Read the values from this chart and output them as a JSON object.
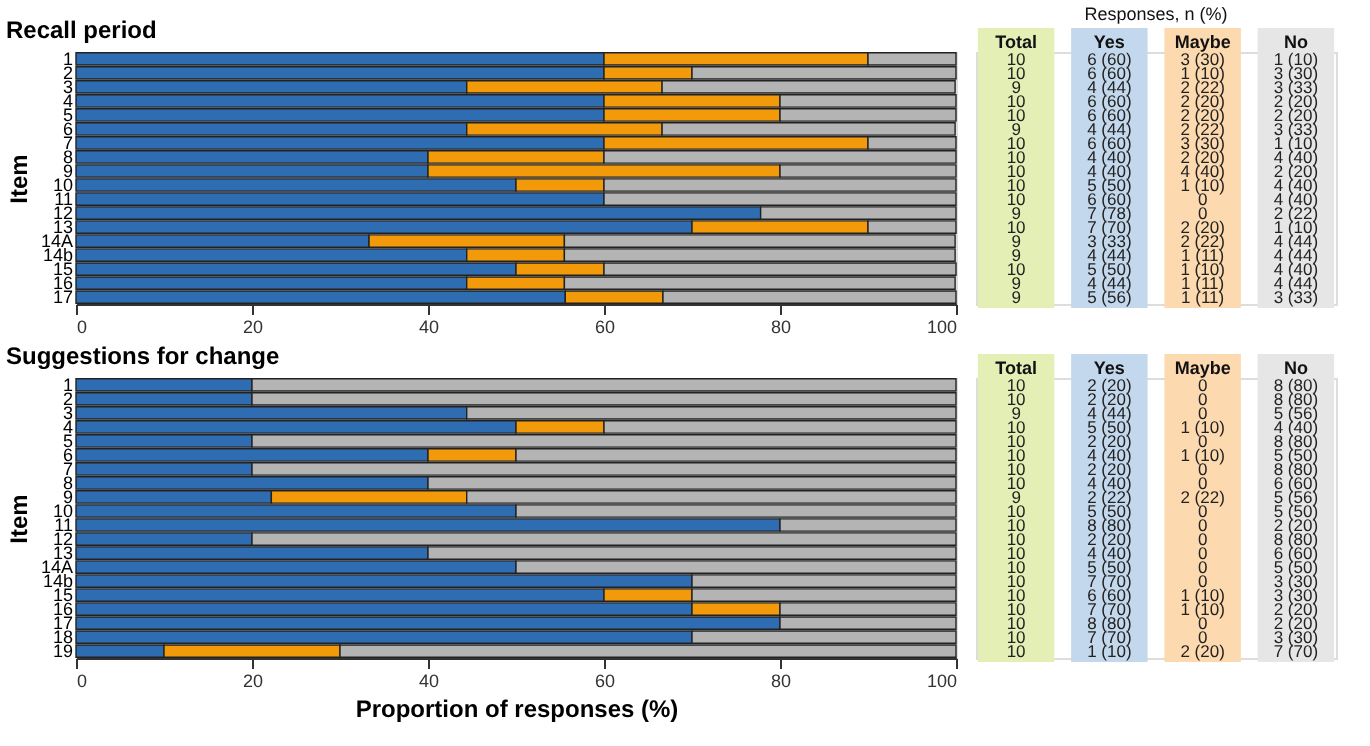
{
  "chart_data": [
    {
      "type": "bar",
      "orientation": "horizontal",
      "stacked": true,
      "title": "Recall period",
      "ylabel": "Item",
      "grid": false,
      "xlim": [
        0,
        100
      ],
      "xticks": [
        0,
        20,
        40,
        60,
        80,
        100
      ],
      "categories": [
        "1",
        "2",
        "3",
        "4",
        "5",
        "6",
        "7",
        "8",
        "9",
        "10",
        "11",
        "12",
        "13",
        "14A",
        "14b",
        "15",
        "16",
        "17"
      ],
      "series": [
        {
          "color": "#2f6db3",
          "values": [
            60,
            60,
            44.4,
            60,
            60,
            44.4,
            60,
            40,
            40,
            50,
            60,
            77.8,
            70,
            33.3,
            44.4,
            50,
            44.4,
            55.6
          ]
        },
        {
          "color": "#f39a0b",
          "values": [
            30,
            10,
            22.2,
            20,
            20,
            22.2,
            30,
            20,
            40,
            10,
            0,
            0,
            20,
            22.2,
            11.1,
            10,
            11.1,
            11.1
          ]
        },
        {
          "color": "#b4b4b4",
          "values": [
            10,
            30,
            33.3,
            20,
            20,
            33.3,
            10,
            40,
            20,
            40,
            40,
            22.2,
            10,
            44.4,
            44.4,
            40,
            44.4,
            33.3
          ]
        }
      ]
    },
    {
      "type": "other",
      "title": "Responses, n (%)",
      "categories": [
        "Total",
        "Yes",
        "Maybe",
        "No"
      ],
      "colors": [
        "#e3efb5",
        "#c3d8ec",
        "#fcd9ae",
        "#e6e6e6"
      ],
      "cell_labels": [
        [
          "10",
          "6 (60)",
          "3 (30)",
          "1 (10)"
        ],
        [
          "10",
          "6 (60)",
          "1 (10)",
          "3 (30)"
        ],
        [
          "9",
          "4 (44)",
          "2 (22)",
          "3 (33)"
        ],
        [
          "10",
          "6 (60)",
          "2 (20)",
          "2 (20)"
        ],
        [
          "10",
          "6 (60)",
          "2 (20)",
          "2 (20)"
        ],
        [
          "9",
          "4 (44)",
          "2 (22)",
          "3 (33)"
        ],
        [
          "10",
          "6 (60)",
          "3 (30)",
          "1 (10)"
        ],
        [
          "10",
          "4 (40)",
          "2 (20)",
          "4 (40)"
        ],
        [
          "10",
          "4 (40)",
          "4 (40)",
          "2 (20)"
        ],
        [
          "10",
          "5 (50)",
          "1 (10)",
          "4 (40)"
        ],
        [
          "10",
          "6 (60)",
          "0",
          "4 (40)"
        ],
        [
          "9",
          "7 (78)",
          "0",
          "2 (22)"
        ],
        [
          "10",
          "7 (70)",
          "2 (20)",
          "1 (10)"
        ],
        [
          "9",
          "3 (33)",
          "2 (22)",
          "4 (44)"
        ],
        [
          "9",
          "4 (44)",
          "1 (11)",
          "4 (44)"
        ],
        [
          "10",
          "5 (50)",
          "1 (10)",
          "4 (40)"
        ],
        [
          "9",
          "4 (44)",
          "1 (11)",
          "4 (44)"
        ],
        [
          "9",
          "5 (56)",
          "1 (11)",
          "3 (33)"
        ]
      ]
    },
    {
      "type": "bar",
      "orientation": "horizontal",
      "stacked": true,
      "title": "Suggestions for change",
      "ylabel": "Item",
      "xlabel": "Proportion of responses (%)",
      "grid": false,
      "xlim": [
        0,
        100
      ],
      "xticks": [
        0,
        20,
        40,
        60,
        80,
        100
      ],
      "categories": [
        "1",
        "2",
        "3",
        "4",
        "5",
        "6",
        "7",
        "8",
        "9",
        "10",
        "11",
        "12",
        "13",
        "14A",
        "14b",
        "15",
        "16",
        "17",
        "18",
        "19"
      ],
      "series": [
        {
          "color": "#2f6db3",
          "values": [
            20,
            20,
            44.4,
            50,
            20,
            40,
            20,
            40,
            22.2,
            50,
            80,
            20,
            40,
            50,
            70,
            60,
            70,
            80,
            70,
            10
          ]
        },
        {
          "color": "#f39a0b",
          "values": [
            0,
            0,
            0,
            10,
            0,
            10,
            0,
            0,
            22.2,
            0,
            0,
            0,
            0,
            0,
            0,
            10,
            10,
            0,
            0,
            20
          ]
        },
        {
          "color": "#b4b4b4",
          "values": [
            80,
            80,
            55.6,
            40,
            80,
            50,
            80,
            60,
            55.6,
            50,
            20,
            80,
            60,
            50,
            30,
            30,
            20,
            20,
            30,
            70
          ]
        }
      ]
    },
    {
      "type": "other",
      "categories": [
        "Total",
        "Yes",
        "Maybe",
        "No"
      ],
      "colors": [
        "#e3efb5",
        "#c3d8ec",
        "#fcd9ae",
        "#e6e6e6"
      ],
      "cell_labels": [
        [
          "10",
          "2 (20)",
          "0",
          "8 (80)"
        ],
        [
          "10",
          "2 (20)",
          "0",
          "8 (80)"
        ],
        [
          "9",
          "4 (44)",
          "0",
          "5 (56)"
        ],
        [
          "10",
          "5 (50)",
          "1 (10)",
          "4 (40)"
        ],
        [
          "10",
          "2 (20)",
          "0",
          "8 (80)"
        ],
        [
          "10",
          "4 (40)",
          "1 (10)",
          "5 (50)"
        ],
        [
          "10",
          "2 (20)",
          "0",
          "8 (80)"
        ],
        [
          "10",
          "4 (40)",
          "0",
          "6 (60)"
        ],
        [
          "9",
          "2 (22)",
          "2 (22)",
          "5 (56)"
        ],
        [
          "10",
          "5 (50)",
          "0",
          "5 (50)"
        ],
        [
          "10",
          "8 (80)",
          "0",
          "2 (20)"
        ],
        [
          "10",
          "2 (20)",
          "0",
          "8 (80)"
        ],
        [
          "10",
          "4 (40)",
          "0",
          "6 (60)"
        ],
        [
          "10",
          "5 (50)",
          "0",
          "5 (50)"
        ],
        [
          "10",
          "7 (70)",
          "0",
          "3 (30)"
        ],
        [
          "10",
          "6 (60)",
          "1 (10)",
          "3 (30)"
        ],
        [
          "10",
          "7 (70)",
          "1 (10)",
          "2 (20)"
        ],
        [
          "10",
          "8 (80)",
          "0",
          "2 (20)"
        ],
        [
          "10",
          "7 (70)",
          "0",
          "3 (30)"
        ],
        [
          "10",
          "1 (10)",
          "2 (20)",
          "7 (70)"
        ]
      ]
    }
  ]
}
